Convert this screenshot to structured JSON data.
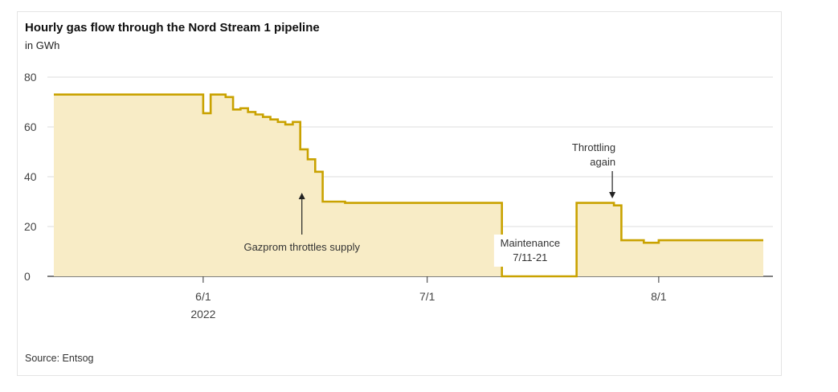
{
  "title": "Hourly gas flow through the Nord Stream 1 pipeline",
  "subtitle": "in GWh",
  "source": "Source: Entsog",
  "colors": {
    "line": "#c9a200",
    "fill": "#f8ecc6",
    "grid": "#dcdcdc",
    "axis": "#333333"
  },
  "chart_data": {
    "type": "area",
    "title": "Hourly gas flow through the Nord Stream 1 pipeline",
    "ylabel": "in GWh",
    "ylim": [
      0,
      80
    ],
    "yticks": [
      0,
      20,
      40,
      60,
      80
    ],
    "xlim": [
      "2022-05-12",
      "2022-08-15"
    ],
    "xticks": [
      {
        "x": "2022-06-01",
        "label": "6/1",
        "sublabel": "2022"
      },
      {
        "x": "2022-07-01",
        "label": "7/1",
        "sublabel": ""
      },
      {
        "x": "2022-08-01",
        "label": "8/1",
        "sublabel": ""
      }
    ],
    "series": [
      {
        "name": "",
        "points": [
          [
            "2022-05-12",
            73
          ],
          [
            "2022-05-15",
            73
          ],
          [
            "2022-05-20",
            73
          ],
          [
            "2022-05-25",
            73
          ],
          [
            "2022-05-31",
            73
          ],
          [
            "2022-06-01",
            65.5
          ],
          [
            "2022-06-02",
            73
          ],
          [
            "2022-06-04",
            72
          ],
          [
            "2022-06-05",
            67
          ],
          [
            "2022-06-06",
            67.5
          ],
          [
            "2022-06-07",
            66
          ],
          [
            "2022-06-08",
            65
          ],
          [
            "2022-06-09",
            64
          ],
          [
            "2022-06-10",
            63
          ],
          [
            "2022-06-11",
            62
          ],
          [
            "2022-06-12",
            61
          ],
          [
            "2022-06-13",
            62
          ],
          [
            "2022-06-14",
            51
          ],
          [
            "2022-06-15",
            47
          ],
          [
            "2022-06-16",
            42
          ],
          [
            "2022-06-17",
            30
          ],
          [
            "2022-06-20",
            29.5
          ],
          [
            "2022-06-25",
            29.5
          ],
          [
            "2022-06-30",
            29.5
          ],
          [
            "2022-07-05",
            29.5
          ],
          [
            "2022-07-10",
            29.5
          ],
          [
            "2022-07-11",
            0
          ],
          [
            "2022-07-15",
            0
          ],
          [
            "2022-07-20",
            0
          ],
          [
            "2022-07-21",
            29.5
          ],
          [
            "2022-07-24",
            29.5
          ],
          [
            "2022-07-26",
            28.5
          ],
          [
            "2022-07-27",
            14.5
          ],
          [
            "2022-07-30",
            13.5
          ],
          [
            "2022-08-01",
            14.5
          ],
          [
            "2022-08-05",
            14.5
          ],
          [
            "2022-08-10",
            14.5
          ],
          [
            "2022-08-15",
            14.5
          ]
        ]
      }
    ],
    "annotations": [
      {
        "text": "Gazprom throttles supply",
        "x": "2022-06-14",
        "y": 35
      },
      {
        "text": "Maintenance\n7/11-21",
        "x": "2022-07-15",
        "y": 12
      },
      {
        "text": "Throttling\nagain",
        "x": "2022-07-26",
        "y": 30
      }
    ]
  }
}
